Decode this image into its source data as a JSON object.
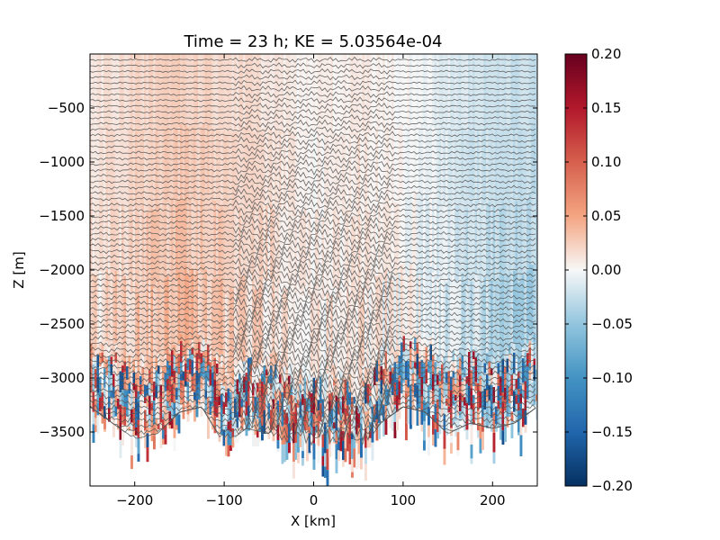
{
  "chart_data": [
    {
      "type": "heatmap",
      "title": "Time = 23 h; KE = 5.03564e-04",
      "xlabel": "X [km]",
      "ylabel": "Z [m]",
      "xlim": [
        -250,
        250
      ],
      "ylim": [
        -4000,
        0
      ],
      "xticks": [
        -200,
        -100,
        0,
        100,
        200
      ],
      "xtick_labels": [
        "−200",
        "−100",
        "0",
        "100",
        "200"
      ],
      "yticks": [
        -500,
        -1000,
        -1500,
        -2000,
        -2500,
        -3000,
        -3500
      ],
      "ytick_labels": [
        "−500",
        "−1000",
        "−1500",
        "−2000",
        "−2500",
        "−3000",
        "−3500"
      ],
      "colormap": "RdBu_r",
      "clim": [
        -0.2,
        0.2
      ],
      "colorbar_ticks": [
        0.2,
        0.15,
        0.1,
        0.05,
        0.0,
        -0.05,
        -0.1,
        -0.15,
        -0.2
      ],
      "colorbar_tick_labels": [
        "0.20",
        "0.15",
        "0.10",
        "0.05",
        "0.00",
        "−0.05",
        "−0.10",
        "−0.15",
        "−0.20"
      ],
      "contour_color": "#555555",
      "contour_count": 66,
      "grid": false,
      "field_profile_x": [
        -250,
        -200,
        -150,
        -100,
        -50,
        0,
        50,
        100,
        150,
        200,
        250
      ],
      "field_profile_value": [
        0.015,
        0.03,
        0.04,
        0.03,
        0.02,
        0.005,
        0.015,
        0.0,
        -0.02,
        -0.035,
        -0.04
      ],
      "bottom_depth_profile_x": [
        -250,
        -225,
        -200,
        -175,
        -150,
        -125,
        -100,
        -75,
        -50,
        -25,
        0,
        25,
        50,
        75,
        100,
        125,
        150,
        175,
        200,
        225,
        250
      ],
      "bottom_depth_profile_z": [
        -3300,
        -3450,
        -3600,
        -3550,
        -3350,
        -3300,
        -3650,
        -3500,
        -3550,
        -3650,
        -3700,
        -3650,
        -3750,
        -3450,
        -3300,
        -3350,
        -3550,
        -3450,
        -3500,
        -3450,
        -3300
      ]
    }
  ]
}
